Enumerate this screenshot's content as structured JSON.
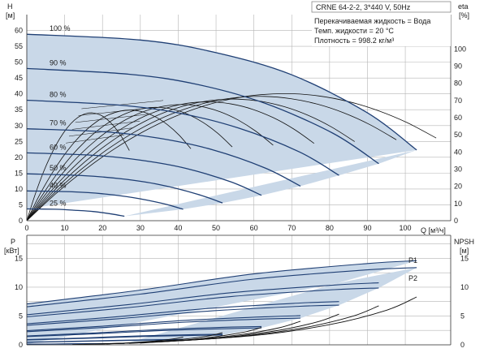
{
  "header": {
    "model": "CRNE 64-2-2, 3*440 V, 50Hz",
    "liquid": "Перекачиваемая жидкость = Вода",
    "temp": "Темп. жидкости = 20 °C",
    "density": "Плотность = 998.2 кг/м³"
  },
  "colors": {
    "region": "#c9d8e8",
    "curve": "#1f3f74",
    "eff": "#111111",
    "grid": "#b5b5b5"
  },
  "chart_data": [
    {
      "type": "line",
      "title": "",
      "xlabel": "Q [м³/ч]",
      "ylabel": "H [м]",
      "y2label": "eta [%]",
      "ylabel_unit_top": "H",
      "ylabel_unit_bottom": "[м]",
      "y2label_top": "eta",
      "y2label_bottom": "[%]",
      "xlim": [
        0,
        112
      ],
      "ylim": [
        0,
        65
      ],
      "y2lim": [
        0,
        120
      ],
      "x_ticks": [
        0,
        10,
        20,
        30,
        40,
        50,
        60,
        70,
        80,
        90,
        100
      ],
      "y_ticks": [
        0,
        5,
        10,
        15,
        20,
        25,
        30,
        35,
        40,
        45,
        50,
        55,
        60
      ],
      "y2_ticks": [
        0,
        10,
        20,
        30,
        40,
        50,
        60,
        70,
        80,
        90,
        100
      ],
      "grid": true,
      "speed_curves": [
        {
          "name": "100 %",
          "points": [
            [
              0,
              58.8
            ],
            [
              30,
              57
            ],
            [
              50,
              53
            ],
            [
              70,
              46
            ],
            [
              90,
              34
            ],
            [
              103,
              22.3
            ]
          ]
        },
        {
          "name": "90 %",
          "points": [
            [
              0,
              48
            ],
            [
              27,
              46.2
            ],
            [
              45,
              43
            ],
            [
              63,
              37
            ],
            [
              81,
              27.5
            ],
            [
              93,
              18
            ]
          ]
        },
        {
          "name": "80 %",
          "points": [
            [
              0,
              38
            ],
            [
              24,
              36.5
            ],
            [
              40,
              34
            ],
            [
              56,
              29.2
            ],
            [
              72,
              21.7
            ],
            [
              82.5,
              14.3
            ]
          ]
        },
        {
          "name": "70 %",
          "points": [
            [
              0,
              29
            ],
            [
              21,
              28
            ],
            [
              35,
              26
            ],
            [
              49,
              22.4
            ],
            [
              63,
              16.6
            ],
            [
              72.3,
              10.9
            ]
          ]
        },
        {
          "name": "60 %",
          "points": [
            [
              0,
              21.4
            ],
            [
              18,
              20.6
            ],
            [
              30,
              19.1
            ],
            [
              42,
              16.5
            ],
            [
              54,
              12.2
            ],
            [
              62,
              8
            ]
          ]
        },
        {
          "name": "50 %",
          "points": [
            [
              0,
              14.8
            ],
            [
              15,
              14.2
            ],
            [
              25,
              13.2
            ],
            [
              35,
              11.4
            ],
            [
              45,
              8.4
            ],
            [
              51.7,
              5.6
            ]
          ]
        },
        {
          "name": "40 %",
          "points": [
            [
              0,
              9.4
            ],
            [
              12,
              9.1
            ],
            [
              20,
              8.5
            ],
            [
              28,
              7.3
            ],
            [
              36,
              5.4
            ],
            [
              41.3,
              3.6
            ]
          ]
        },
        {
          "name": "25 %",
          "points": [
            [
              0,
              3.7
            ],
            [
              7.5,
              3.6
            ],
            [
              12.5,
              3.3
            ],
            [
              17.5,
              2.9
            ],
            [
              22.5,
              2.1
            ],
            [
              25.8,
              1.4
            ]
          ]
        }
      ],
      "efficiency_peak_pct": 74
    },
    {
      "type": "line",
      "title": "",
      "ylabel": "P [кВт]",
      "y2label": "NPSH [м]",
      "ylabel_unit_top": "P",
      "ylabel_unit_bottom": "[кВт]",
      "y2label_top": "NPSH",
      "y2label_bottom": "[м]",
      "xlim": [
        0,
        112
      ],
      "ylim": [
        0,
        19
      ],
      "y2lim": [
        0,
        19
      ],
      "y_ticks": [
        0,
        5,
        10,
        15
      ],
      "y2_ticks": [
        0,
        5,
        10,
        15
      ],
      "grid": true,
      "series_labels": [
        "P1",
        "P2"
      ],
      "power_p1_100": [
        [
          0,
          7.1
        ],
        [
          30,
          9.5
        ],
        [
          60,
          12.3
        ],
        [
          90,
          14.1
        ],
        [
          103,
          14.6
        ]
      ],
      "power_p2_100": [
        [
          0,
          6.6
        ],
        [
          30,
          8.8
        ],
        [
          60,
          11.4
        ],
        [
          90,
          13.0
        ],
        [
          103,
          13.4
        ]
      ],
      "npsh": [
        [
          30,
          0.3
        ],
        [
          60,
          1.6
        ],
        [
          80,
          3.5
        ],
        [
          95,
          6
        ],
        [
          103,
          8.3
        ]
      ]
    }
  ]
}
